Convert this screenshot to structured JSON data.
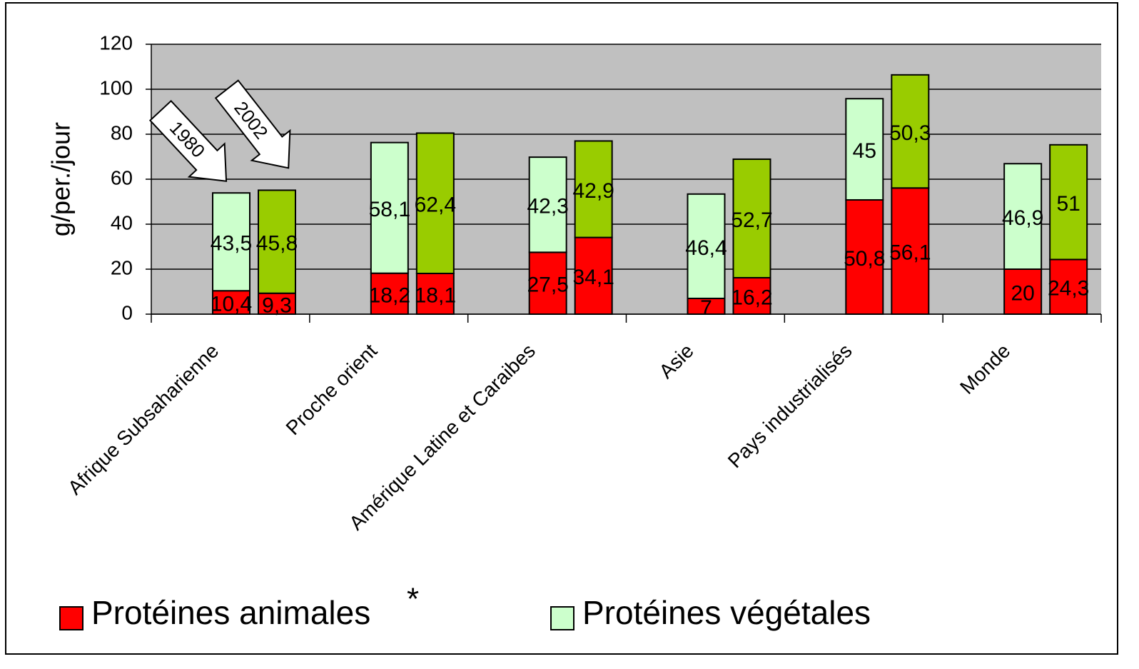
{
  "chart_data": {
    "type": "grouped-stacked-bar",
    "ylabel": "g/per./jour",
    "categories": [
      "Afrique Subsaharienne",
      "Proche orient",
      "Amérique Latine et Caraibes",
      "Asie",
      "Pays industrialisés",
      "Monde"
    ],
    "groups": [
      {
        "name": "1980",
        "series": [
          {
            "color": "#ff0000",
            "values": [
              10.4,
              18.2,
              27.5,
              7,
              50.8,
              20
            ],
            "value_labels": [
              "10,4",
              "18,2",
              "27,5",
              "7",
              "50,8",
              "20"
            ]
          },
          {
            "color": "#ccffcc",
            "values": [
              43.5,
              58.1,
              42.3,
              46.4,
              45,
              46.9
            ],
            "value_labels": [
              "43,5",
              "58,1",
              "42,3",
              "46,4",
              "45",
              "46,9"
            ]
          }
        ]
      },
      {
        "name": "2002",
        "series": [
          {
            "color": "#ff0000",
            "values": [
              9.3,
              18.1,
              34.1,
              16.2,
              56.1,
              24.3
            ],
            "value_labels": [
              "9,3",
              "18,1",
              "34,1",
              "16,2",
              "56,1",
              "24,3"
            ]
          },
          {
            "color": "#99cc00",
            "values": [
              45.8,
              62.4,
              42.9,
              52.7,
              50.3,
              51
            ],
            "value_labels": [
              "45,8",
              "62,4",
              "42,9",
              "52,7",
              "50,3",
              "51"
            ]
          }
        ]
      }
    ],
    "legend": [
      {
        "name": "Protéines animales",
        "color": "#ff0000"
      },
      {
        "name": "Protéines végétales",
        "color": "#ccffcc"
      }
    ],
    "legend_note": "*",
    "ylim": [
      0,
      120
    ],
    "yticks": [
      0,
      20,
      40,
      60,
      80,
      100,
      120
    ],
    "grid": true,
    "plot_background": "#c0c0c0"
  }
}
